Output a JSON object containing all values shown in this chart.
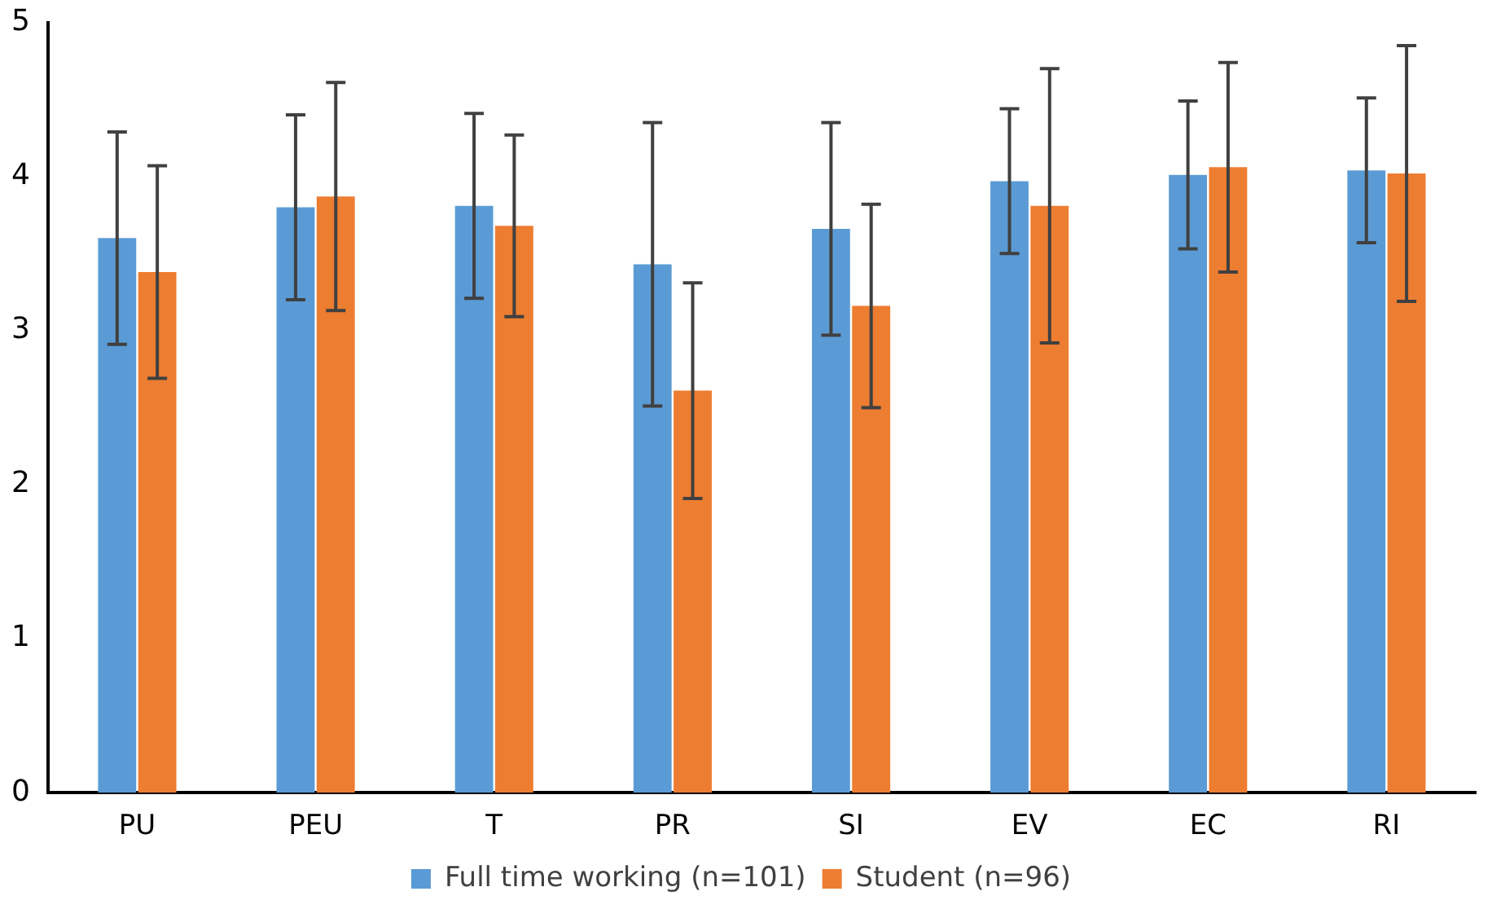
{
  "chart_data": {
    "type": "bar",
    "categories": [
      "PU",
      "PEU",
      "T",
      "PR",
      "SI",
      "EV",
      "EC",
      "RI"
    ],
    "series": [
      {
        "name": "Full time working (n=101)",
        "color": "#5b9bd5",
        "values": [
          3.6,
          3.8,
          3.81,
          3.43,
          3.66,
          3.97,
          4.01,
          4.04
        ],
        "errors": [
          0.69,
          0.6,
          0.6,
          0.92,
          0.69,
          0.47,
          0.48,
          0.47
        ]
      },
      {
        "name": "Student (n=96)",
        "color": "#ed7d31",
        "values": [
          3.38,
          3.87,
          3.68,
          2.61,
          3.16,
          3.81,
          4.06,
          4.02
        ],
        "errors": [
          0.69,
          0.74,
          0.59,
          0.7,
          0.66,
          0.89,
          0.68,
          0.83
        ]
      }
    ],
    "ylim": [
      0,
      5
    ],
    "yticks": [
      0,
      1,
      2,
      3,
      4,
      5
    ],
    "grid": false,
    "legend": "bottom"
  }
}
